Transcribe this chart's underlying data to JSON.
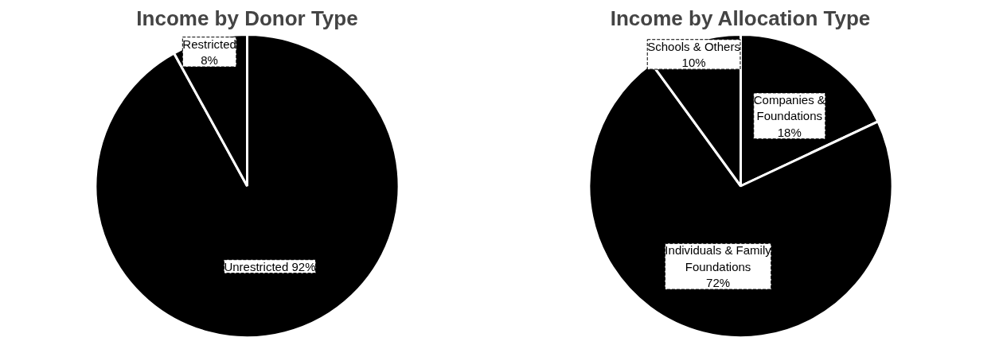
{
  "chart_data": [
    {
      "type": "pie",
      "title": "Income by Donor Type",
      "categories": [
        "Unrestricted",
        "Restricted"
      ],
      "values": [
        92,
        8
      ],
      "value_labels": [
        "92%",
        "8%"
      ],
      "colors": [
        "#000000",
        "#000000"
      ]
    },
    {
      "type": "pie",
      "title": "Income by Allocation Type",
      "categories": [
        "Companies & Foundations",
        "Individuals & Family Foundations",
        "Schools & Others"
      ],
      "values": [
        18,
        72,
        10
      ],
      "value_labels": [
        "18%",
        "72%",
        "10%"
      ],
      "colors": [
        "#000000",
        "#000000",
        "#000000"
      ]
    }
  ]
}
